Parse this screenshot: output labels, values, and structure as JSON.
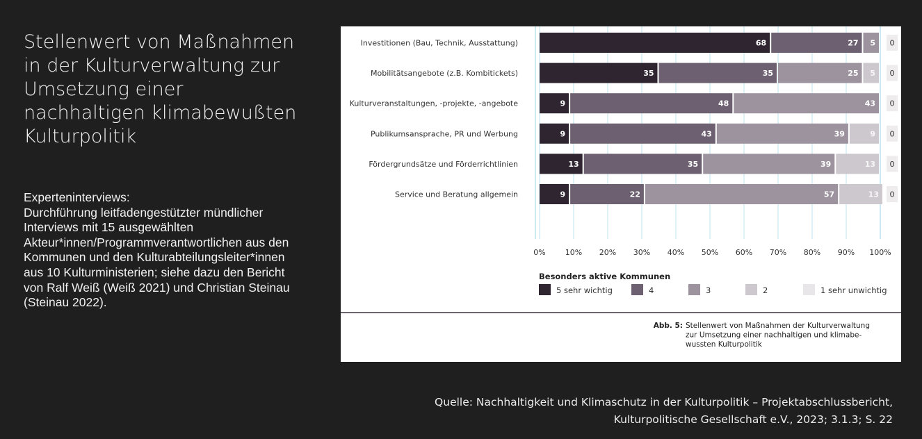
{
  "title": "Stellenwert von Maßnahmen in der Kulturverwaltung zur Umsetzung einer nachhaltigen klimabewußten Kulturpolitik",
  "description": {
    "heading": "Experteninterviews:",
    "body": "Durchführung leitfadengestützter mündlicher Interviews mit 15 ausgewählten Akteur*innen/Programmverantwortlichen aus den Kommunen und den Kulturabteilungsleiter*innen aus 10 Kulturministerien; siehe dazu den Bericht von Ralf Weiß (Weiß 2021) und Christian Steinau (Steinau 2022)."
  },
  "source": {
    "line1": "Quelle: Nachhaltigkeit und Klimaschutz in der Kulturpolitik – Projektabschlussbericht,",
    "line2": "Kulturpolitische Gesellschaft e.V., 2023; 3.1.3; S. 22"
  },
  "chart_data": {
    "type": "bar",
    "orientation": "horizontal",
    "stacked": true,
    "categories": [
      "Investitionen (Bau, Technik, Ausstattung)",
      "Mobilitätsangebote (z.B. Kombitickets)",
      "Kulturveranstaltungen, -projekte, -angebote",
      "Publikumsansprache, PR und Werbung",
      "Fördergrundsätze und Förderrichtlinien",
      "Service und Beratung allgemein"
    ],
    "series": [
      {
        "name": "5 sehr wichtig",
        "color": "#2e2530",
        "values": [
          68,
          35,
          9,
          9,
          13,
          9
        ]
      },
      {
        "name": "4",
        "color": "#6d6070",
        "values": [
          27,
          35,
          48,
          43,
          35,
          22
        ]
      },
      {
        "name": "3",
        "color": "#9d939f",
        "values": [
          5,
          25,
          43,
          39,
          39,
          57
        ]
      },
      {
        "name": "2",
        "color": "#cdc7ce",
        "values": [
          0,
          5,
          0,
          9,
          13,
          13
        ]
      },
      {
        "name": "1 sehr unwichtig",
        "color": "#e9e6e9",
        "values": [
          0,
          0,
          0,
          0,
          0,
          0
        ]
      }
    ],
    "value_labels": [
      [
        "68",
        "27",
        "5",
        "",
        ""
      ],
      [
        "35",
        "35",
        "25",
        "5",
        ""
      ],
      [
        "9",
        "48",
        "43",
        "",
        ""
      ],
      [
        "9",
        "43",
        "39",
        "9",
        ""
      ],
      [
        "13",
        "35",
        "39",
        "13",
        ""
      ],
      [
        "9",
        "22",
        "57",
        "13",
        ""
      ]
    ],
    "right_labels": [
      "0",
      "0",
      "0",
      "0",
      "0",
      "0"
    ],
    "xlim": [
      0,
      100
    ],
    "xticks": [
      "0%",
      "10%",
      "20%",
      "30%",
      "40%",
      "50%",
      "60%",
      "70%",
      "80%",
      "90%",
      "100%"
    ],
    "legend_title": "Besonders aktive Kommunen",
    "legend_position": "bottom",
    "caption_label": "Abb. 5:",
    "caption_lines": [
      "Stellenwert von Maßnahmen der Kulturverwaltung",
      "zur Umsetzung einer nachhaltigen und klimabe-",
      "wussten Kulturpolitik"
    ]
  }
}
